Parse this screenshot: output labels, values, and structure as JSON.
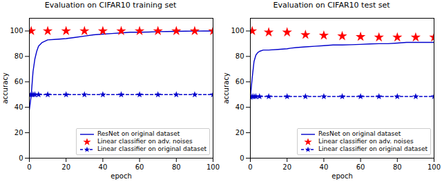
{
  "chart_data": [
    {
      "type": "line",
      "title": "Evaluation on CIFAR10 training set",
      "xlabel": "epoch",
      "ylabel": "accuracy",
      "xlim": [
        0,
        100
      ],
      "xticks": [
        0,
        20,
        40,
        60,
        80,
        100
      ],
      "ylim": [
        0,
        110
      ],
      "yticks": [
        0,
        20,
        40,
        60,
        80,
        100
      ],
      "grid": false,
      "legend": "lower right",
      "series": [
        {
          "name": "ResNet on original dataset",
          "type": "line",
          "color": "#0000cc",
          "line_style": "solid",
          "x": [
            0,
            1,
            2,
            3,
            4,
            5,
            7,
            10,
            15,
            20,
            25,
            30,
            35,
            40,
            45,
            50,
            55,
            60,
            65,
            70,
            75,
            80,
            85,
            90,
            95,
            100
          ],
          "values": [
            38,
            49,
            68,
            78,
            84,
            88,
            91,
            93,
            93.5,
            94,
            95,
            96,
            97,
            97.5,
            98,
            98.5,
            99,
            99,
            99.2,
            99.5,
            99.6,
            99.7,
            99.8,
            99.9,
            100,
            100
          ]
        },
        {
          "name": "Linear classifier on adv. noises",
          "type": "scatter",
          "color": "red",
          "marker": "star",
          "x": [
            1,
            10,
            20,
            30,
            40,
            50,
            60,
            70,
            80,
            90,
            100
          ],
          "values": [
            100,
            100,
            100,
            100,
            100,
            100,
            100,
            100,
            100,
            100,
            100
          ]
        },
        {
          "name": "Linear classifier on original dataset",
          "type": "line",
          "color": "#0000cc",
          "line_style": "dashed",
          "marker": "star",
          "x": [
            0,
            1,
            2,
            3,
            5,
            10,
            20,
            30,
            40,
            50,
            60,
            70,
            80,
            90,
            100
          ],
          "values": [
            50,
            50,
            50,
            50,
            50,
            50,
            50,
            50,
            50,
            50,
            50,
            50,
            50,
            50,
            50
          ]
        }
      ]
    },
    {
      "type": "line",
      "title": "Evaluation on CIFAR10 test set",
      "xlabel": "epoch",
      "ylabel": "accuracy",
      "xlim": [
        0,
        100
      ],
      "xticks": [
        0,
        20,
        40,
        60,
        80,
        100
      ],
      "ylim": [
        0,
        110
      ],
      "yticks": [
        0,
        20,
        40,
        60,
        80,
        100
      ],
      "grid": false,
      "legend": "lower right",
      "series": [
        {
          "name": "ResNet on original dataset",
          "type": "line",
          "color": "#0000cc",
          "line_style": "solid",
          "x": [
            0,
            1,
            2,
            3,
            4,
            5,
            7,
            10,
            15,
            20,
            22,
            25,
            30,
            35,
            40,
            45,
            50,
            55,
            60,
            65,
            70,
            75,
            80,
            85,
            90,
            95,
            100
          ],
          "values": [
            48,
            63,
            76,
            81,
            83,
            84,
            85,
            85,
            85.5,
            86,
            86.5,
            87,
            87.5,
            88,
            88.5,
            89,
            89,
            89.2,
            89.5,
            89.8,
            90,
            90,
            90.5,
            91,
            91,
            91,
            91
          ]
        },
        {
          "name": "Linear classifier on adv. noises",
          "type": "scatter",
          "color": "red",
          "marker": "star",
          "x": [
            1,
            10,
            20,
            30,
            40,
            50,
            60,
            70,
            80,
            90,
            100
          ],
          "values": [
            100,
            99,
            99,
            97,
            96.5,
            96,
            95.5,
            95,
            95,
            95,
            95
          ]
        },
        {
          "name": "Linear classifier on original dataset",
          "type": "line",
          "color": "#0000cc",
          "line_style": "dashed",
          "marker": "star",
          "x": [
            0,
            1,
            2,
            3,
            5,
            10,
            20,
            30,
            40,
            50,
            60,
            70,
            80,
            90,
            100
          ],
          "values": [
            48,
            48.5,
            48.5,
            48.5,
            48.5,
            48.5,
            48.5,
            48.5,
            48.5,
            48.5,
            48.5,
            48.5,
            48.5,
            48.5,
            48.5
          ]
        }
      ]
    }
  ]
}
